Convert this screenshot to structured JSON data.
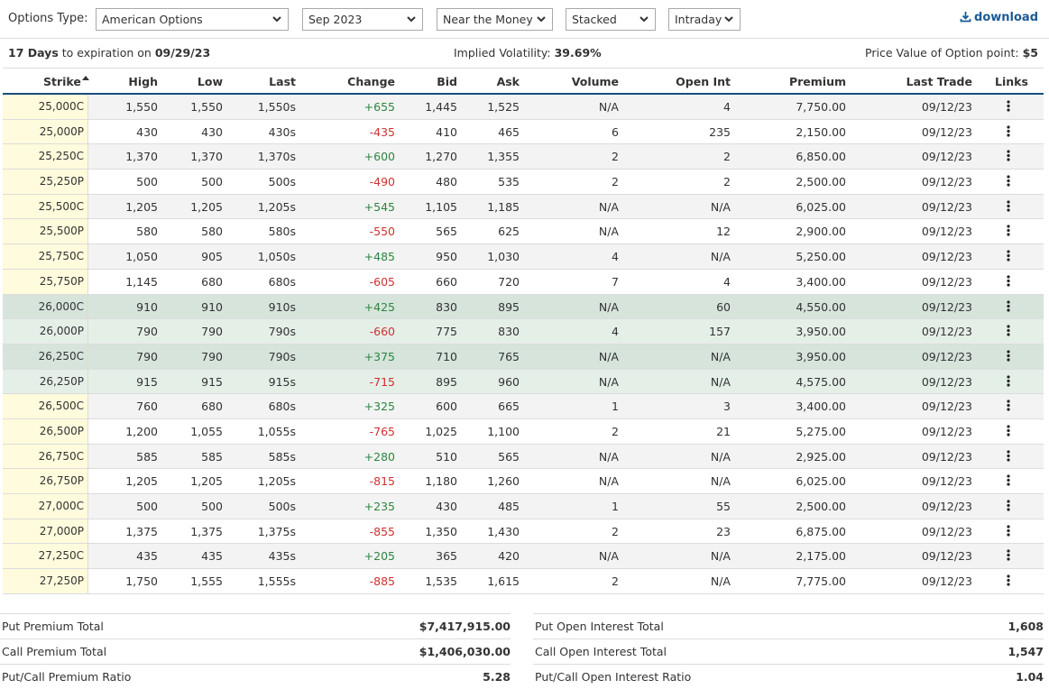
{
  "toolbar": {
    "options_type_label": "Options Type:",
    "options_type_value": "American Options",
    "expiry_value": "Sep 2023",
    "range_value": "Near the Money",
    "layout_value": "Stacked",
    "period_value": "Intraday",
    "download_label": "download",
    "link_color": "#1a5a96"
  },
  "info": {
    "days": "17 Days",
    "days_text": "to expiration on",
    "exp_date": "09/29/23",
    "iv_label": "Implied Volatility:",
    "iv_value": "39.69%",
    "pvop_label": "Price Value of Option point:",
    "pvop_value": "$5"
  },
  "table": {
    "headers": {
      "strike": "Strike",
      "high": "High",
      "low": "Low",
      "last": "Last",
      "change": "Change",
      "bid": "Bid",
      "ask": "Ask",
      "volume": "Volume",
      "open_int": "Open Int",
      "premium": "Premium",
      "last_trade": "Last Trade",
      "links": "Links"
    },
    "sort_icon": "caret-up-icon",
    "rows": [
      {
        "strike": "25,000C",
        "high": "1,550",
        "low": "1,550",
        "last": "1,550s",
        "change": "+655",
        "bid": "1,445",
        "ask": "1,525",
        "volume": "N/A",
        "open_int": "4",
        "premium": "7,750.00",
        "last_trade": "09/12/23"
      },
      {
        "strike": "25,000P",
        "high": "430",
        "low": "430",
        "last": "430s",
        "change": "-435",
        "bid": "410",
        "ask": "465",
        "volume": "6",
        "open_int": "235",
        "premium": "2,150.00",
        "last_trade": "09/12/23"
      },
      {
        "strike": "25,250C",
        "high": "1,370",
        "low": "1,370",
        "last": "1,370s",
        "change": "+600",
        "bid": "1,270",
        "ask": "1,355",
        "volume": "2",
        "open_int": "2",
        "premium": "6,850.00",
        "last_trade": "09/12/23"
      },
      {
        "strike": "25,250P",
        "high": "500",
        "low": "500",
        "last": "500s",
        "change": "-490",
        "bid": "480",
        "ask": "535",
        "volume": "2",
        "open_int": "2",
        "premium": "2,500.00",
        "last_trade": "09/12/23"
      },
      {
        "strike": "25,500C",
        "high": "1,205",
        "low": "1,205",
        "last": "1,205s",
        "change": "+545",
        "bid": "1,105",
        "ask": "1,185",
        "volume": "N/A",
        "open_int": "N/A",
        "premium": "6,025.00",
        "last_trade": "09/12/23"
      },
      {
        "strike": "25,500P",
        "high": "580",
        "low": "580",
        "last": "580s",
        "change": "-550",
        "bid": "565",
        "ask": "625",
        "volume": "N/A",
        "open_int": "12",
        "premium": "2,900.00",
        "last_trade": "09/12/23"
      },
      {
        "strike": "25,750C",
        "high": "1,050",
        "low": "905",
        "last": "1,050s",
        "change": "+485",
        "bid": "950",
        "ask": "1,030",
        "volume": "4",
        "open_int": "N/A",
        "premium": "5,250.00",
        "last_trade": "09/12/23"
      },
      {
        "strike": "25,750P",
        "high": "1,145",
        "low": "680",
        "last": "680s",
        "change": "-605",
        "bid": "660",
        "ask": "720",
        "volume": "7",
        "open_int": "4",
        "premium": "3,400.00",
        "last_trade": "09/12/23"
      },
      {
        "strike": "26,000C",
        "high": "910",
        "low": "910",
        "last": "910s",
        "change": "+425",
        "bid": "830",
        "ask": "895",
        "volume": "N/A",
        "open_int": "60",
        "premium": "4,550.00",
        "last_trade": "09/12/23"
      },
      {
        "strike": "26,000P",
        "high": "790",
        "low": "790",
        "last": "790s",
        "change": "-660",
        "bid": "775",
        "ask": "830",
        "volume": "4",
        "open_int": "157",
        "premium": "3,950.00",
        "last_trade": "09/12/23"
      },
      {
        "strike": "26,250C",
        "high": "790",
        "low": "790",
        "last": "790s",
        "change": "+375",
        "bid": "710",
        "ask": "765",
        "volume": "N/A",
        "open_int": "N/A",
        "premium": "3,950.00",
        "last_trade": "09/12/23"
      },
      {
        "strike": "26,250P",
        "high": "915",
        "low": "915",
        "last": "915s",
        "change": "-715",
        "bid": "895",
        "ask": "960",
        "volume": "N/A",
        "open_int": "N/A",
        "premium": "4,575.00",
        "last_trade": "09/12/23"
      },
      {
        "strike": "26,500C",
        "high": "760",
        "low": "680",
        "last": "680s",
        "change": "+325",
        "bid": "600",
        "ask": "665",
        "volume": "1",
        "open_int": "3",
        "premium": "3,400.00",
        "last_trade": "09/12/23"
      },
      {
        "strike": "26,500P",
        "high": "1,200",
        "low": "1,055",
        "last": "1,055s",
        "change": "-765",
        "bid": "1,025",
        "ask": "1,100",
        "volume": "2",
        "open_int": "21",
        "premium": "5,275.00",
        "last_trade": "09/12/23"
      },
      {
        "strike": "26,750C",
        "high": "585",
        "low": "585",
        "last": "585s",
        "change": "+280",
        "bid": "510",
        "ask": "565",
        "volume": "N/A",
        "open_int": "N/A",
        "premium": "2,925.00",
        "last_trade": "09/12/23"
      },
      {
        "strike": "26,750P",
        "high": "1,205",
        "low": "1,205",
        "last": "1,205s",
        "change": "-815",
        "bid": "1,180",
        "ask": "1,260",
        "volume": "N/A",
        "open_int": "N/A",
        "premium": "6,025.00",
        "last_trade": "09/12/23"
      },
      {
        "strike": "27,000C",
        "high": "500",
        "low": "500",
        "last": "500s",
        "change": "+235",
        "bid": "430",
        "ask": "485",
        "volume": "1",
        "open_int": "55",
        "premium": "2,500.00",
        "last_trade": "09/12/23"
      },
      {
        "strike": "27,000P",
        "high": "1,375",
        "low": "1,375",
        "last": "1,375s",
        "change": "-855",
        "bid": "1,350",
        "ask": "1,430",
        "volume": "2",
        "open_int": "23",
        "premium": "6,875.00",
        "last_trade": "09/12/23"
      },
      {
        "strike": "27,250C",
        "high": "435",
        "low": "435",
        "last": "435s",
        "change": "+205",
        "bid": "365",
        "ask": "420",
        "volume": "N/A",
        "open_int": "N/A",
        "premium": "2,175.00",
        "last_trade": "09/12/23"
      },
      {
        "strike": "27,250P",
        "high": "1,750",
        "low": "1,555",
        "last": "1,555s",
        "change": "-885",
        "bid": "1,535",
        "ask": "1,615",
        "volume": "2",
        "open_int": "N/A",
        "premium": "7,775.00",
        "last_trade": "09/12/23"
      }
    ],
    "colors": {
      "positive": "#2e8540",
      "negative": "#d03030",
      "strike_bg": "#fffbdc",
      "atm_dark": "#d6e4dc",
      "atm_light": "#e4efe8",
      "header_rule": "#1a4e7e"
    }
  },
  "summary": {
    "left": [
      {
        "label": "Put Premium Total",
        "value": "$7,417,915.00"
      },
      {
        "label": "Call Premium Total",
        "value": "$1,406,030.00"
      },
      {
        "label": "Put/Call Premium Ratio",
        "value": "5.28"
      }
    ],
    "right": [
      {
        "label": "Put Open Interest Total",
        "value": "1,608"
      },
      {
        "label": "Call Open Interest Total",
        "value": "1,547"
      },
      {
        "label": "Put/Call Open Interest Ratio",
        "value": "1.04"
      }
    ]
  }
}
